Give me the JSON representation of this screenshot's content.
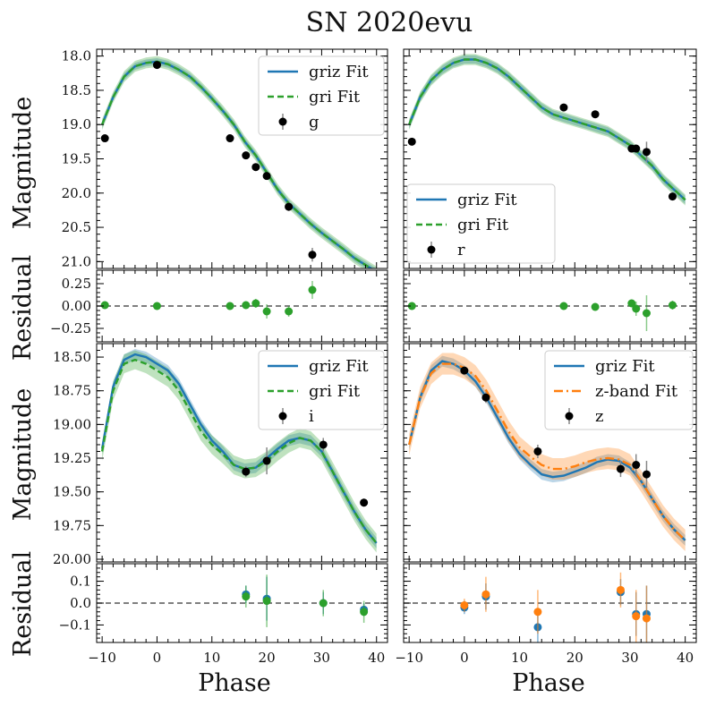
{
  "figure": {
    "title": "SN 2020evu",
    "xlabel": "Phase",
    "ylabel_mag": "Magnitude",
    "ylabel_res": "Residual"
  },
  "colors": {
    "griz": "#1f77b4",
    "gri": "#2ca02c",
    "zband": "#ff7f0e",
    "data": "#000000",
    "zero_line": "#555555"
  },
  "chart_data": [
    {
      "type": "line",
      "panel": "g",
      "ylim": [
        21.1,
        17.9
      ],
      "xlim": [
        -11,
        42
      ],
      "yticks": [
        18.0,
        18.5,
        19.0,
        19.5,
        20.0,
        20.5,
        21.0
      ],
      "legend": [
        "griz Fit",
        "gri Fit",
        "g"
      ],
      "legend_loc": "upper right",
      "series": [
        {
          "name": "griz Fit",
          "style": "solid",
          "color": "#1f77b4",
          "x": [
            -10,
            -8,
            -6,
            -4,
            -2,
            0,
            2,
            4,
            6,
            8,
            10,
            12,
            14,
            16,
            18,
            20,
            22,
            24,
            26,
            28,
            30,
            32,
            34,
            36,
            38,
            40
          ],
          "y": [
            19.0,
            18.6,
            18.3,
            18.15,
            18.1,
            18.08,
            18.12,
            18.2,
            18.3,
            18.45,
            18.62,
            18.8,
            19.0,
            19.25,
            19.45,
            19.7,
            19.95,
            20.15,
            20.3,
            20.45,
            20.58,
            20.7,
            20.82,
            20.95,
            21.05,
            21.15
          ],
          "band": 0.05
        },
        {
          "name": "gri Fit",
          "style": "dashed",
          "color": "#2ca02c",
          "x": [
            -10,
            -8,
            -6,
            -4,
            -2,
            0,
            2,
            4,
            6,
            8,
            10,
            12,
            14,
            16,
            18,
            20,
            22,
            24,
            26,
            28,
            30,
            32,
            34,
            36,
            38,
            40
          ],
          "y": [
            19.0,
            18.6,
            18.3,
            18.15,
            18.1,
            18.08,
            18.12,
            18.2,
            18.3,
            18.45,
            18.62,
            18.8,
            19.0,
            19.25,
            19.45,
            19.7,
            19.95,
            20.15,
            20.3,
            20.45,
            20.58,
            20.7,
            20.82,
            20.95,
            21.05,
            21.15
          ],
          "band": 0.08
        }
      ],
      "points": {
        "name": "g",
        "x": [
          -9.5,
          0,
          13.3,
          16.2,
          18.0,
          20.0,
          24.0,
          28.3
        ],
        "y": [
          19.2,
          18.13,
          19.2,
          19.45,
          19.62,
          19.75,
          20.2,
          20.9
        ],
        "err": [
          0.04,
          0.02,
          0.03,
          0.04,
          0.05,
          0.05,
          0.06,
          0.1
        ]
      },
      "residuals": {
        "ylim": [
          -0.4,
          0.4
        ],
        "yticks": [
          -0.25,
          0.0,
          0.25
        ],
        "series": [
          {
            "name": "gri",
            "color": "#2ca02c",
            "x": [
              -9.5,
              0,
              13.3,
              16.2,
              18.0,
              20.0,
              24.0,
              28.3
            ],
            "y": [
              0.01,
              0.0,
              0.0,
              0.01,
              0.03,
              -0.06,
              -0.06,
              0.18
            ],
            "err": [
              0.04,
              0.02,
              0.03,
              0.04,
              0.05,
              0.08,
              0.06,
              0.1
            ]
          }
        ]
      }
    },
    {
      "type": "line",
      "panel": "r",
      "ylim": [
        21.1,
        17.9
      ],
      "xlim": [
        -11,
        42
      ],
      "yticks": [
        18.0,
        18.5,
        19.0,
        19.5,
        20.0,
        20.5,
        21.0
      ],
      "legend": [
        "griz Fit",
        "gri Fit",
        "r"
      ],
      "legend_loc": "lower left",
      "series": [
        {
          "name": "griz Fit",
          "style": "solid",
          "color": "#1f77b4",
          "x": [
            -10,
            -8,
            -6,
            -4,
            -2,
            0,
            2,
            4,
            6,
            8,
            10,
            12,
            14,
            16,
            18,
            20,
            22,
            24,
            26,
            28,
            30,
            32,
            34,
            36,
            38,
            40
          ],
          "y": [
            19.0,
            18.6,
            18.35,
            18.2,
            18.1,
            18.05,
            18.05,
            18.1,
            18.18,
            18.3,
            18.45,
            18.6,
            18.75,
            18.85,
            18.9,
            18.95,
            19.0,
            19.05,
            19.1,
            19.2,
            19.3,
            19.45,
            19.6,
            19.8,
            19.95,
            20.1
          ],
          "band": 0.06
        },
        {
          "name": "gri Fit",
          "style": "dashed",
          "color": "#2ca02c",
          "x": [
            -10,
            -8,
            -6,
            -4,
            -2,
            0,
            2,
            4,
            6,
            8,
            10,
            12,
            14,
            16,
            18,
            20,
            22,
            24,
            26,
            28,
            30,
            32,
            34,
            36,
            38,
            40
          ],
          "y": [
            19.0,
            18.6,
            18.35,
            18.2,
            18.1,
            18.05,
            18.05,
            18.1,
            18.18,
            18.3,
            18.45,
            18.6,
            18.75,
            18.85,
            18.9,
            18.95,
            19.0,
            19.05,
            19.1,
            19.2,
            19.3,
            19.45,
            19.6,
            19.8,
            19.95,
            20.1
          ],
          "band": 0.08
        }
      ],
      "points": {
        "name": "r",
        "x": [
          -9.5,
          18.0,
          23.7,
          30.3,
          31.1,
          33.0,
          37.7
        ],
        "y": [
          19.25,
          18.75,
          18.85,
          19.35,
          19.35,
          19.4,
          20.05
        ],
        "err": [
          0.03,
          0.02,
          0.03,
          0.04,
          0.05,
          0.15,
          0.04
        ]
      },
      "residuals": {
        "ylim": [
          -0.4,
          0.4
        ],
        "yticks": [
          -0.25,
          0.0,
          0.25
        ],
        "series": [
          {
            "name": "gri",
            "color": "#2ca02c",
            "x": [
              -9.5,
              18.0,
              23.7,
              30.3,
              31.1,
              33.0,
              37.7
            ],
            "y": [
              0.0,
              0.0,
              -0.01,
              0.03,
              -0.03,
              -0.08,
              0.01
            ],
            "err": [
              0.03,
              0.02,
              0.03,
              0.04,
              0.08,
              0.2,
              0.05
            ]
          }
        ]
      }
    },
    {
      "type": "line",
      "panel": "i",
      "ylim": [
        20.02,
        18.4
      ],
      "xlim": [
        -11,
        42
      ],
      "yticks": [
        18.5,
        18.75,
        19.0,
        19.25,
        19.5,
        19.75,
        20.0
      ],
      "yticklabels": [
        "18.50",
        "18.75",
        "19.00",
        "19.25",
        "19.50",
        "19.75",
        "20.00"
      ],
      "legend": [
        "griz Fit",
        "gri Fit",
        "i"
      ],
      "legend_loc": "upper right",
      "series": [
        {
          "name": "griz Fit",
          "style": "solid",
          "color": "#1f77b4",
          "x": [
            -10,
            -8,
            -6,
            -4,
            -2,
            0,
            2,
            4,
            6,
            8,
            10,
            12,
            14,
            16,
            18,
            20,
            22,
            24,
            26,
            28,
            30,
            32,
            34,
            36,
            38,
            40
          ],
          "y": [
            19.18,
            18.72,
            18.52,
            18.48,
            18.5,
            18.55,
            18.6,
            18.7,
            18.85,
            19.0,
            19.12,
            19.2,
            19.3,
            19.33,
            19.32,
            19.25,
            19.18,
            19.12,
            19.1,
            19.12,
            19.2,
            19.35,
            19.5,
            19.65,
            19.78,
            19.88
          ],
          "band": 0.04
        },
        {
          "name": "gri Fit",
          "style": "dashed",
          "color": "#2ca02c",
          "x": [
            -10,
            -8,
            -6,
            -4,
            -2,
            0,
            2,
            4,
            6,
            8,
            10,
            12,
            14,
            16,
            18,
            20,
            22,
            24,
            26,
            28,
            30,
            32,
            34,
            36,
            38,
            40
          ],
          "y": [
            19.2,
            18.75,
            18.55,
            18.52,
            18.55,
            18.6,
            18.65,
            18.75,
            18.9,
            19.05,
            19.15,
            19.22,
            19.3,
            19.33,
            19.32,
            19.27,
            19.2,
            19.14,
            19.1,
            19.12,
            19.2,
            19.35,
            19.5,
            19.65,
            19.78,
            19.88
          ],
          "band": 0.07
        }
      ],
      "points": {
        "name": "i",
        "x": [
          16.2,
          20.0,
          30.3,
          37.7
        ],
        "y": [
          19.35,
          19.27,
          19.15,
          19.58
        ],
        "err": [
          0.04,
          0.1,
          0.05,
          0.03
        ]
      },
      "residuals": {
        "ylim": [
          -0.18,
          0.18
        ],
        "yticks": [
          -0.1,
          0.0,
          0.1
        ],
        "series": [
          {
            "name": "griz",
            "color": "#1f77b4",
            "x": [
              16.2,
              20.0,
              30.3,
              37.7
            ],
            "y": [
              0.04,
              0.02,
              0.0,
              -0.03
            ],
            "err": [
              0.04,
              0.1,
              0.05,
              0.03
            ]
          },
          {
            "name": "gri",
            "color": "#2ca02c",
            "x": [
              16.2,
              20.0,
              30.3,
              37.7
            ],
            "y": [
              0.03,
              0.01,
              0.0,
              -0.04
            ],
            "err": [
              0.05,
              0.12,
              0.06,
              0.05
            ]
          }
        ]
      }
    },
    {
      "type": "line",
      "panel": "z",
      "ylim": [
        20.02,
        18.4
      ],
      "xlim": [
        -11,
        42
      ],
      "yticks": [
        18.5,
        18.75,
        19.0,
        19.25,
        19.5,
        19.75,
        20.0
      ],
      "yticklabels": [
        "18.50",
        "18.75",
        "19.00",
        "19.25",
        "19.50",
        "19.75",
        "20.00"
      ],
      "legend": [
        "griz Fit",
        "z-band Fit",
        "z"
      ],
      "legend_loc": "upper right",
      "series": [
        {
          "name": "griz Fit",
          "style": "solid",
          "color": "#1f77b4",
          "x": [
            -10,
            -8,
            -6,
            -4,
            -2,
            0,
            2,
            4,
            6,
            8,
            10,
            12,
            14,
            16,
            18,
            20,
            22,
            24,
            26,
            28,
            30,
            32,
            34,
            36,
            38,
            40
          ],
          "y": [
            19.15,
            18.8,
            18.6,
            18.53,
            18.55,
            18.6,
            18.68,
            18.8,
            18.95,
            19.1,
            19.22,
            19.3,
            19.37,
            19.39,
            19.38,
            19.35,
            19.32,
            19.28,
            19.26,
            19.27,
            19.32,
            19.42,
            19.55,
            19.68,
            19.78,
            19.86
          ],
          "band": 0.04
        },
        {
          "name": "z-band Fit",
          "style": "dashdot",
          "color": "#ff7f0e",
          "x": [
            -10,
            -8,
            -6,
            -4,
            -2,
            0,
            2,
            4,
            6,
            8,
            10,
            12,
            14,
            16,
            18,
            20,
            22,
            24,
            26,
            28,
            30,
            32,
            34,
            36,
            38,
            40
          ],
          "y": [
            19.15,
            18.8,
            18.62,
            18.55,
            18.55,
            18.58,
            18.64,
            18.75,
            18.9,
            19.05,
            19.17,
            19.24,
            19.3,
            19.33,
            19.33,
            19.31,
            19.28,
            19.26,
            19.25,
            19.26,
            19.3,
            19.42,
            19.55,
            19.68,
            19.78,
            19.86
          ],
          "band": 0.08
        }
      ],
      "points": {
        "name": "z",
        "x": [
          0,
          3.9,
          13.3,
          28.3,
          31.1,
          33.0
        ],
        "y": [
          18.6,
          18.8,
          19.2,
          19.33,
          19.3,
          19.37
        ],
        "err": [
          0.02,
          0.04,
          0.05,
          0.06,
          0.08,
          0.1
        ]
      },
      "residuals": {
        "ylim": [
          -0.18,
          0.18
        ],
        "yticks": [
          -0.1,
          0.0,
          0.1
        ],
        "series": [
          {
            "name": "griz",
            "color": "#1f77b4",
            "x": [
              0,
              3.9,
              13.3,
              28.3,
              31.1,
              33.0
            ],
            "y": [
              -0.02,
              0.03,
              -0.11,
              0.05,
              -0.05,
              -0.05
            ],
            "err": [
              0.03,
              0.06,
              0.07,
              0.06,
              0.1,
              0.13
            ]
          },
          {
            "name": "z-band",
            "color": "#ff7f0e",
            "x": [
              0,
              3.9,
              13.3,
              28.3,
              31.1,
              33.0
            ],
            "y": [
              -0.01,
              0.04,
              -0.04,
              0.06,
              -0.06,
              -0.07
            ],
            "err": [
              0.03,
              0.08,
              0.1,
              0.08,
              0.12,
              0.15
            ]
          }
        ]
      }
    }
  ],
  "xticks": [
    -10,
    0,
    10,
    20,
    30,
    40
  ],
  "xticklabels": [
    "−10",
    "0",
    "10",
    "20",
    "30",
    "40"
  ]
}
